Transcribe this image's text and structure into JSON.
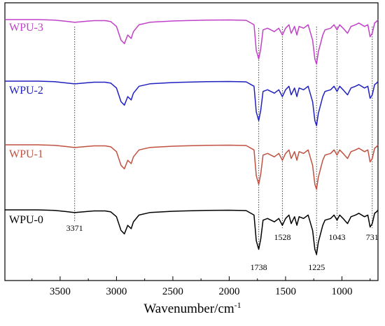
{
  "chart_data": {
    "type": "line",
    "xlabel": "Wavenumber/cm",
    "xlabel_sup": "-1",
    "xlim": [
      3990,
      680
    ],
    "x_reversed": true,
    "x_ticks": [
      3500,
      3000,
      2500,
      2000,
      1500,
      1000
    ],
    "ylabel": "",
    "y_ticks_shown": false,
    "grid": false,
    "legend": "inline labels at top-left of each trace",
    "annotation_lines": [
      {
        "x": 3371,
        "label": "3371"
      },
      {
        "x": 1738,
        "label": "1738"
      },
      {
        "x": 1528,
        "label": "1528"
      },
      {
        "x": 1225,
        "label": "1225"
      },
      {
        "x": 1043,
        "label": "1043"
      },
      {
        "x": 731,
        "label": "731"
      }
    ],
    "series": [
      {
        "name": "WPU-3",
        "color": "#c040c8",
        "points": [
          [
            3990,
            0.0
          ],
          [
            3700,
            0.0
          ],
          [
            3550,
            -0.3
          ],
          [
            3450,
            -1.0
          ],
          [
            3371,
            -1.6
          ],
          [
            3300,
            -1.2
          ],
          [
            3200,
            -0.6
          ],
          [
            3100,
            -0.6
          ],
          [
            3050,
            -1.2
          ],
          [
            3000,
            -4
          ],
          [
            2960,
            -12
          ],
          [
            2930,
            -14
          ],
          [
            2900,
            -9
          ],
          [
            2870,
            -11
          ],
          [
            2850,
            -7
          ],
          [
            2800,
            -3
          ],
          [
            2700,
            -1.5
          ],
          [
            2500,
            -0.8
          ],
          [
            2200,
            -0.3
          ],
          [
            2000,
            -0.2
          ],
          [
            1850,
            -0.4
          ],
          [
            1780,
            -3
          ],
          [
            1760,
            -18
          ],
          [
            1738,
            -23
          ],
          [
            1720,
            -17
          ],
          [
            1700,
            -6
          ],
          [
            1660,
            -5
          ],
          [
            1600,
            -7
          ],
          [
            1560,
            -5
          ],
          [
            1528,
            -9
          ],
          [
            1500,
            -5
          ],
          [
            1470,
            -3
          ],
          [
            1450,
            -8
          ],
          [
            1420,
            -4
          ],
          [
            1400,
            -9
          ],
          [
            1380,
            -4
          ],
          [
            1340,
            -5
          ],
          [
            1300,
            -3
          ],
          [
            1260,
            -12
          ],
          [
            1240,
            -23
          ],
          [
            1225,
            -26
          ],
          [
            1210,
            -19
          ],
          [
            1170,
            -9
          ],
          [
            1150,
            -6
          ],
          [
            1100,
            -5
          ],
          [
            1070,
            -3
          ],
          [
            1043,
            -6
          ],
          [
            1020,
            -3
          ],
          [
            990,
            -5
          ],
          [
            950,
            -8
          ],
          [
            920,
            -4
          ],
          [
            880,
            -3
          ],
          [
            850,
            -2
          ],
          [
            800,
            -4
          ],
          [
            770,
            -3
          ],
          [
            750,
            -10
          ],
          [
            731,
            -8
          ],
          [
            710,
            -2
          ],
          [
            690,
            -1
          ],
          [
            680,
            0
          ]
        ]
      },
      {
        "name": "WPU-2",
        "color": "#2020c0",
        "points": [
          [
            3990,
            0.0
          ],
          [
            3700,
            0.0
          ],
          [
            3550,
            -0.3
          ],
          [
            3450,
            -1.0
          ],
          [
            3371,
            -1.6
          ],
          [
            3300,
            -1.2
          ],
          [
            3200,
            -0.6
          ],
          [
            3100,
            -0.6
          ],
          [
            3050,
            -1.2
          ],
          [
            3000,
            -4
          ],
          [
            2960,
            -12
          ],
          [
            2930,
            -14
          ],
          [
            2900,
            -9
          ],
          [
            2870,
            -11
          ],
          [
            2850,
            -7
          ],
          [
            2800,
            -3
          ],
          [
            2700,
            -1.5
          ],
          [
            2500,
            -0.8
          ],
          [
            2200,
            -0.3
          ],
          [
            2000,
            -0.2
          ],
          [
            1850,
            -0.4
          ],
          [
            1780,
            -3
          ],
          [
            1760,
            -18
          ],
          [
            1738,
            -23
          ],
          [
            1720,
            -17
          ],
          [
            1700,
            -6
          ],
          [
            1660,
            -5
          ],
          [
            1600,
            -7
          ],
          [
            1560,
            -5
          ],
          [
            1528,
            -9
          ],
          [
            1500,
            -5
          ],
          [
            1470,
            -3
          ],
          [
            1450,
            -8
          ],
          [
            1420,
            -4
          ],
          [
            1400,
            -9
          ],
          [
            1380,
            -4
          ],
          [
            1340,
            -5
          ],
          [
            1300,
            -3
          ],
          [
            1260,
            -12
          ],
          [
            1240,
            -23
          ],
          [
            1225,
            -26
          ],
          [
            1210,
            -19
          ],
          [
            1170,
            -9
          ],
          [
            1150,
            -6
          ],
          [
            1100,
            -5
          ],
          [
            1070,
            -3
          ],
          [
            1043,
            -6
          ],
          [
            1020,
            -3
          ],
          [
            990,
            -5
          ],
          [
            950,
            -8
          ],
          [
            920,
            -4
          ],
          [
            880,
            -3
          ],
          [
            850,
            -2
          ],
          [
            800,
            -4
          ],
          [
            770,
            -3
          ],
          [
            750,
            -10
          ],
          [
            731,
            -8
          ],
          [
            710,
            -2
          ],
          [
            690,
            -1
          ],
          [
            680,
            0
          ]
        ]
      },
      {
        "name": "WPU-1",
        "color": "#c05040",
        "points": [
          [
            3990,
            0.0
          ],
          [
            3700,
            0.0
          ],
          [
            3550,
            -0.3
          ],
          [
            3450,
            -1.0
          ],
          [
            3371,
            -1.6
          ],
          [
            3300,
            -1.2
          ],
          [
            3200,
            -0.6
          ],
          [
            3100,
            -0.6
          ],
          [
            3050,
            -1.2
          ],
          [
            3000,
            -4
          ],
          [
            2960,
            -12
          ],
          [
            2930,
            -14
          ],
          [
            2900,
            -9
          ],
          [
            2870,
            -11
          ],
          [
            2850,
            -7
          ],
          [
            2800,
            -3
          ],
          [
            2700,
            -1.5
          ],
          [
            2500,
            -0.8
          ],
          [
            2200,
            -0.3
          ],
          [
            2000,
            -0.2
          ],
          [
            1850,
            -0.4
          ],
          [
            1780,
            -3
          ],
          [
            1760,
            -18
          ],
          [
            1738,
            -23
          ],
          [
            1720,
            -17
          ],
          [
            1700,
            -6
          ],
          [
            1660,
            -5
          ],
          [
            1600,
            -7
          ],
          [
            1560,
            -5
          ],
          [
            1528,
            -9
          ],
          [
            1500,
            -5
          ],
          [
            1470,
            -3
          ],
          [
            1450,
            -8
          ],
          [
            1420,
            -4
          ],
          [
            1400,
            -9
          ],
          [
            1380,
            -4
          ],
          [
            1340,
            -5
          ],
          [
            1300,
            -3
          ],
          [
            1260,
            -12
          ],
          [
            1240,
            -23
          ],
          [
            1225,
            -26
          ],
          [
            1210,
            -19
          ],
          [
            1170,
            -9
          ],
          [
            1150,
            -6
          ],
          [
            1100,
            -5
          ],
          [
            1070,
            -3
          ],
          [
            1043,
            -6
          ],
          [
            1020,
            -3
          ],
          [
            990,
            -5
          ],
          [
            950,
            -8
          ],
          [
            920,
            -4
          ],
          [
            880,
            -3
          ],
          [
            850,
            -2
          ],
          [
            800,
            -4
          ],
          [
            770,
            -3
          ],
          [
            750,
            -10
          ],
          [
            731,
            -8
          ],
          [
            710,
            -2
          ],
          [
            690,
            -1
          ],
          [
            680,
            0
          ]
        ]
      },
      {
        "name": "WPU-0",
        "color": "#000000",
        "points": [
          [
            3990,
            0.0
          ],
          [
            3700,
            0.0
          ],
          [
            3550,
            -0.3
          ],
          [
            3450,
            -1.0
          ],
          [
            3371,
            -1.6
          ],
          [
            3300,
            -1.2
          ],
          [
            3200,
            -0.6
          ],
          [
            3100,
            -0.6
          ],
          [
            3050,
            -1.2
          ],
          [
            3000,
            -4
          ],
          [
            2960,
            -12
          ],
          [
            2930,
            -14
          ],
          [
            2900,
            -9
          ],
          [
            2870,
            -11
          ],
          [
            2850,
            -7
          ],
          [
            2800,
            -3
          ],
          [
            2700,
            -1.5
          ],
          [
            2500,
            -0.8
          ],
          [
            2200,
            -0.3
          ],
          [
            2000,
            -0.2
          ],
          [
            1850,
            -0.4
          ],
          [
            1780,
            -3
          ],
          [
            1760,
            -18
          ],
          [
            1738,
            -23
          ],
          [
            1720,
            -17
          ],
          [
            1700,
            -6
          ],
          [
            1660,
            -5
          ],
          [
            1600,
            -7
          ],
          [
            1560,
            -5
          ],
          [
            1528,
            -9
          ],
          [
            1500,
            -5
          ],
          [
            1470,
            -3
          ],
          [
            1450,
            -8
          ],
          [
            1420,
            -4
          ],
          [
            1400,
            -9
          ],
          [
            1380,
            -4
          ],
          [
            1340,
            -5
          ],
          [
            1300,
            -3
          ],
          [
            1260,
            -12
          ],
          [
            1240,
            -23
          ],
          [
            1225,
            -26
          ],
          [
            1210,
            -19
          ],
          [
            1170,
            -9
          ],
          [
            1150,
            -6
          ],
          [
            1100,
            -5
          ],
          [
            1070,
            -3
          ],
          [
            1043,
            -6
          ],
          [
            1020,
            -3
          ],
          [
            990,
            -5
          ],
          [
            950,
            -8
          ],
          [
            920,
            -4
          ],
          [
            880,
            -3
          ],
          [
            850,
            -2
          ],
          [
            800,
            -4
          ],
          [
            770,
            -3
          ],
          [
            750,
            -10
          ],
          [
            731,
            -8
          ],
          [
            710,
            -2
          ],
          [
            690,
            -1
          ],
          [
            680,
            0
          ]
        ]
      }
    ]
  }
}
